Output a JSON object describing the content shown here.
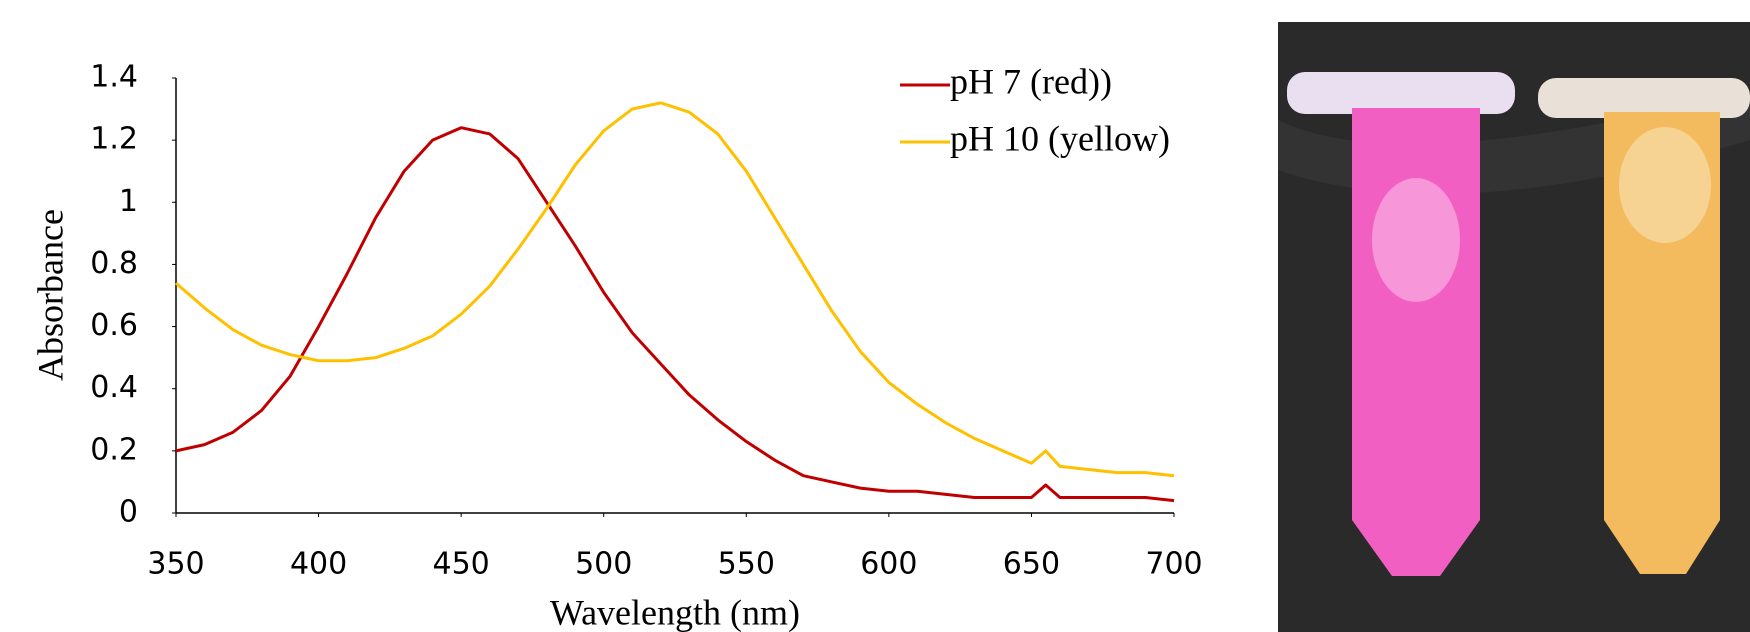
{
  "chart_data": {
    "type": "line",
    "x_label": "Wavelength (nm)",
    "y_label": "Absorbance",
    "x": [
      350,
      360,
      370,
      380,
      390,
      400,
      410,
      420,
      430,
      440,
      450,
      460,
      470,
      480,
      490,
      500,
      510,
      520,
      530,
      540,
      550,
      560,
      570,
      580,
      590,
      600,
      610,
      620,
      630,
      640,
      650,
      655,
      660,
      670,
      680,
      690,
      700
    ],
    "series": [
      {
        "name": "pH 7 (red))",
        "color": "#c00000",
        "values": [
          0.2,
          0.22,
          0.26,
          0.33,
          0.44,
          0.6,
          0.77,
          0.95,
          1.1,
          1.2,
          1.24,
          1.22,
          1.14,
          1.0,
          0.86,
          0.71,
          0.58,
          0.48,
          0.38,
          0.3,
          0.23,
          0.17,
          0.12,
          0.1,
          0.08,
          0.07,
          0.07,
          0.06,
          0.05,
          0.05,
          0.05,
          0.09,
          0.05,
          0.05,
          0.05,
          0.05,
          0.04
        ]
      },
      {
        "name": "pH 10 (yellow)",
        "color": "#ffc000",
        "values": [
          0.74,
          0.66,
          0.59,
          0.54,
          0.51,
          0.49,
          0.49,
          0.5,
          0.53,
          0.57,
          0.64,
          0.73,
          0.85,
          0.98,
          1.12,
          1.23,
          1.3,
          1.32,
          1.29,
          1.22,
          1.1,
          0.95,
          0.8,
          0.65,
          0.52,
          0.42,
          0.35,
          0.29,
          0.24,
          0.2,
          0.16,
          0.2,
          0.15,
          0.14,
          0.13,
          0.13,
          0.12
        ]
      }
    ],
    "xlim": [
      350,
      700
    ],
    "ylim": [
      0,
      1.4
    ],
    "xticks": [
      350,
      400,
      450,
      500,
      550,
      600,
      650,
      700
    ],
    "yticks": [
      0,
      0.2,
      0.4,
      0.6,
      0.8,
      1,
      1.2,
      1.4
    ],
    "grid": false,
    "legend": "top-right"
  }
}
